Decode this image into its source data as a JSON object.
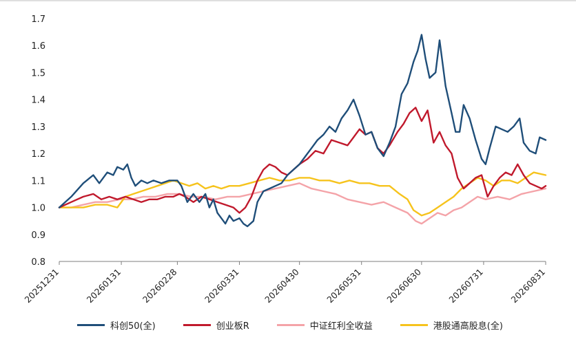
{
  "chart_data": {
    "type": "line",
    "title": "",
    "xlabel": "",
    "ylabel": "",
    "ylim": [
      0.8,
      1.7
    ],
    "y_ticks": [
      "0.8",
      "0.9",
      "1.0",
      "1.1",
      "1.2",
      "1.3",
      "1.4",
      "1.5",
      "1.6",
      "1.7"
    ],
    "x_ticks": [
      "20251231",
      "20260131",
      "20260228",
      "20260331",
      "20260430",
      "20260531",
      "20260630",
      "20260731",
      "20260831"
    ],
    "legend_position": "bottom",
    "grid": false,
    "colors": {
      "kc50": "#1f4e79",
      "cyb": "#c0192c",
      "zzhl": "#f4a3a8",
      "ggtgx": "#f6c31c",
      "axis": "#7f7f7f",
      "top_border": "#bfbfbf"
    },
    "series": [
      {
        "name": "科创50(全)",
        "color": "#1f4e79",
        "points": [
          [
            "20251231",
            1.0
          ],
          [
            "20260106",
            1.04
          ],
          [
            "20260112",
            1.09
          ],
          [
            "20260117",
            1.12
          ],
          [
            "20260120",
            1.09
          ],
          [
            "20260124",
            1.13
          ],
          [
            "20260127",
            1.12
          ],
          [
            "20260129",
            1.15
          ],
          [
            "20260201",
            1.14
          ],
          [
            "20260203",
            1.16
          ],
          [
            "20260205",
            1.11
          ],
          [
            "20260207",
            1.08
          ],
          [
            "20260210",
            1.1
          ],
          [
            "20260213",
            1.09
          ],
          [
            "20260216",
            1.1
          ],
          [
            "20260220",
            1.09
          ],
          [
            "20260224",
            1.1
          ],
          [
            "20260228",
            1.1
          ],
          [
            "20260302",
            1.08
          ],
          [
            "20260305",
            1.02
          ],
          [
            "20260308",
            1.05
          ],
          [
            "20260311",
            1.02
          ],
          [
            "20260314",
            1.05
          ],
          [
            "20260316",
            1.0
          ],
          [
            "20260318",
            1.03
          ],
          [
            "20260320",
            0.98
          ],
          [
            "20260322",
            0.96
          ],
          [
            "20260324",
            0.94
          ],
          [
            "20260326",
            0.97
          ],
          [
            "20260328",
            0.95
          ],
          [
            "20260331",
            0.96
          ],
          [
            "20260402",
            0.94
          ],
          [
            "20260404",
            0.93
          ],
          [
            "20260407",
            0.95
          ],
          [
            "20260409",
            1.02
          ],
          [
            "20260412",
            1.06
          ],
          [
            "20260415",
            1.07
          ],
          [
            "20260418",
            1.08
          ],
          [
            "20260421",
            1.09
          ],
          [
            "20260424",
            1.12
          ],
          [
            "20260427",
            1.14
          ],
          [
            "20260430",
            1.16
          ],
          [
            "20260503",
            1.19
          ],
          [
            "20260506",
            1.22
          ],
          [
            "20260509",
            1.25
          ],
          [
            "20260512",
            1.27
          ],
          [
            "20260515",
            1.3
          ],
          [
            "20260518",
            1.28
          ],
          [
            "20260521",
            1.33
          ],
          [
            "20260524",
            1.36
          ],
          [
            "20260527",
            1.4
          ],
          [
            "20260530",
            1.34
          ],
          [
            "20260602",
            1.27
          ],
          [
            "20260605",
            1.28
          ],
          [
            "20260608",
            1.22
          ],
          [
            "20260611",
            1.19
          ],
          [
            "20260614",
            1.24
          ],
          [
            "20260617",
            1.3
          ],
          [
            "20260620",
            1.42
          ],
          [
            "20260623",
            1.46
          ],
          [
            "20260626",
            1.54
          ],
          [
            "20260628",
            1.58
          ],
          [
            "20260630",
            1.64
          ],
          [
            "20260702",
            1.55
          ],
          [
            "20260704",
            1.48
          ],
          [
            "20260707",
            1.5
          ],
          [
            "20260709",
            1.62
          ],
          [
            "20260712",
            1.45
          ],
          [
            "20260715",
            1.35
          ],
          [
            "20260717",
            1.28
          ],
          [
            "20260719",
            1.28
          ],
          [
            "20260721",
            1.38
          ],
          [
            "20260724",
            1.33
          ],
          [
            "20260727",
            1.25
          ],
          [
            "20260730",
            1.18
          ],
          [
            "20260801",
            1.16
          ],
          [
            "20260803",
            1.22
          ],
          [
            "20260806",
            1.3
          ],
          [
            "20260809",
            1.29
          ],
          [
            "20260812",
            1.28
          ],
          [
            "20260815",
            1.3
          ],
          [
            "20260818",
            1.33
          ],
          [
            "20260820",
            1.24
          ],
          [
            "20260823",
            1.21
          ],
          [
            "20260826",
            1.2
          ],
          [
            "20260828",
            1.26
          ],
          [
            "20260831",
            1.25
          ]
        ]
      },
      {
        "name": "创业板R",
        "color": "#c0192c",
        "points": [
          [
            "20251231",
            1.0
          ],
          [
            "20260106",
            1.02
          ],
          [
            "20260112",
            1.04
          ],
          [
            "20260117",
            1.05
          ],
          [
            "20260121",
            1.03
          ],
          [
            "20260125",
            1.04
          ],
          [
            "20260129",
            1.03
          ],
          [
            "20260202",
            1.04
          ],
          [
            "20260206",
            1.03
          ],
          [
            "20260210",
            1.02
          ],
          [
            "20260214",
            1.03
          ],
          [
            "20260218",
            1.03
          ],
          [
            "20260222",
            1.04
          ],
          [
            "20260226",
            1.04
          ],
          [
            "20260301",
            1.05
          ],
          [
            "20260304",
            1.04
          ],
          [
            "20260308",
            1.02
          ],
          [
            "20260312",
            1.04
          ],
          [
            "20260316",
            1.03
          ],
          [
            "20260320",
            1.02
          ],
          [
            "20260324",
            1.01
          ],
          [
            "20260328",
            1.0
          ],
          [
            "20260331",
            0.98
          ],
          [
            "20260403",
            1.0
          ],
          [
            "20260406",
            1.04
          ],
          [
            "20260409",
            1.1
          ],
          [
            "20260412",
            1.14
          ],
          [
            "20260415",
            1.16
          ],
          [
            "20260418",
            1.15
          ],
          [
            "20260421",
            1.13
          ],
          [
            "20260424",
            1.12
          ],
          [
            "20260427",
            1.14
          ],
          [
            "20260430",
            1.16
          ],
          [
            "20260504",
            1.18
          ],
          [
            "20260508",
            1.21
          ],
          [
            "20260512",
            1.2
          ],
          [
            "20260516",
            1.25
          ],
          [
            "20260520",
            1.24
          ],
          [
            "20260524",
            1.23
          ],
          [
            "20260527",
            1.26
          ],
          [
            "20260530",
            1.29
          ],
          [
            "20260602",
            1.27
          ],
          [
            "20260605",
            1.28
          ],
          [
            "20260608",
            1.22
          ],
          [
            "20260611",
            1.2
          ],
          [
            "20260614",
            1.23
          ],
          [
            "20260618",
            1.28
          ],
          [
            "20260621",
            1.31
          ],
          [
            "20260624",
            1.35
          ],
          [
            "20260627",
            1.37
          ],
          [
            "20260630",
            1.32
          ],
          [
            "20260703",
            1.36
          ],
          [
            "20260706",
            1.24
          ],
          [
            "20260709",
            1.28
          ],
          [
            "20260712",
            1.23
          ],
          [
            "20260715",
            1.2
          ],
          [
            "20260718",
            1.11
          ],
          [
            "20260721",
            1.07
          ],
          [
            "20260724",
            1.09
          ],
          [
            "20260727",
            1.11
          ],
          [
            "20260730",
            1.12
          ],
          [
            "20260802",
            1.04
          ],
          [
            "20260805",
            1.08
          ],
          [
            "20260808",
            1.11
          ],
          [
            "20260811",
            1.13
          ],
          [
            "20260814",
            1.12
          ],
          [
            "20260817",
            1.16
          ],
          [
            "20260820",
            1.12
          ],
          [
            "20260823",
            1.09
          ],
          [
            "20260826",
            1.08
          ],
          [
            "20260829",
            1.07
          ],
          [
            "20260831",
            1.08
          ]
        ]
      },
      {
        "name": "中证红利全收益",
        "color": "#f4a3a8",
        "points": [
          [
            "20251231",
            1.0
          ],
          [
            "20260106",
            1.0
          ],
          [
            "20260112",
            1.01
          ],
          [
            "20260118",
            1.02
          ],
          [
            "20260124",
            1.02
          ],
          [
            "20260130",
            1.03
          ],
          [
            "20260205",
            1.03
          ],
          [
            "20260211",
            1.04
          ],
          [
            "20260217",
            1.04
          ],
          [
            "20260223",
            1.05
          ],
          [
            "20260301",
            1.05
          ],
          [
            "20260307",
            1.04
          ],
          [
            "20260313",
            1.04
          ],
          [
            "20260319",
            1.03
          ],
          [
            "20260325",
            1.04
          ],
          [
            "20260331",
            1.04
          ],
          [
            "20260406",
            1.05
          ],
          [
            "20260412",
            1.06
          ],
          [
            "20260418",
            1.07
          ],
          [
            "20260424",
            1.08
          ],
          [
            "20260430",
            1.09
          ],
          [
            "20260506",
            1.07
          ],
          [
            "20260512",
            1.06
          ],
          [
            "20260518",
            1.05
          ],
          [
            "20260524",
            1.03
          ],
          [
            "20260530",
            1.02
          ],
          [
            "20260605",
            1.01
          ],
          [
            "20260611",
            1.02
          ],
          [
            "20260617",
            1.0
          ],
          [
            "20260623",
            0.98
          ],
          [
            "20260627",
            0.95
          ],
          [
            "20260630",
            0.94
          ],
          [
            "20260704",
            0.96
          ],
          [
            "20260708",
            0.98
          ],
          [
            "20260712",
            0.97
          ],
          [
            "20260716",
            0.99
          ],
          [
            "20260720",
            1.0
          ],
          [
            "20260724",
            1.02
          ],
          [
            "20260728",
            1.04
          ],
          [
            "20260801",
            1.03
          ],
          [
            "20260807",
            1.04
          ],
          [
            "20260813",
            1.03
          ],
          [
            "20260819",
            1.05
          ],
          [
            "20260825",
            1.06
          ],
          [
            "20260831",
            1.07
          ]
        ]
      },
      {
        "name": "港股通高股息(全)",
        "color": "#f6c31c",
        "points": [
          [
            "20251231",
            1.0
          ],
          [
            "20260106",
            1.0
          ],
          [
            "20260112",
            1.0
          ],
          [
            "20260118",
            1.01
          ],
          [
            "20260124",
            1.01
          ],
          [
            "20260129",
            1.0
          ],
          [
            "20260202",
            1.04
          ],
          [
            "20260206",
            1.05
          ],
          [
            "20260210",
            1.06
          ],
          [
            "20260214",
            1.07
          ],
          [
            "20260218",
            1.08
          ],
          [
            "20260222",
            1.09
          ],
          [
            "20260226",
            1.1
          ],
          [
            "20260302",
            1.09
          ],
          [
            "20260306",
            1.08
          ],
          [
            "20260310",
            1.09
          ],
          [
            "20260314",
            1.07
          ],
          [
            "20260318",
            1.08
          ],
          [
            "20260322",
            1.07
          ],
          [
            "20260326",
            1.08
          ],
          [
            "20260331",
            1.08
          ],
          [
            "20260405",
            1.09
          ],
          [
            "20260410",
            1.1
          ],
          [
            "20260415",
            1.11
          ],
          [
            "20260420",
            1.1
          ],
          [
            "20260425",
            1.1
          ],
          [
            "20260430",
            1.11
          ],
          [
            "20260505",
            1.11
          ],
          [
            "20260510",
            1.1
          ],
          [
            "20260515",
            1.1
          ],
          [
            "20260520",
            1.09
          ],
          [
            "20260525",
            1.1
          ],
          [
            "20260530",
            1.09
          ],
          [
            "20260604",
            1.09
          ],
          [
            "20260609",
            1.08
          ],
          [
            "20260614",
            1.08
          ],
          [
            "20260619",
            1.05
          ],
          [
            "20260623",
            1.03
          ],
          [
            "20260626",
            0.99
          ],
          [
            "20260630",
            0.97
          ],
          [
            "20260704",
            0.98
          ],
          [
            "20260708",
            1.0
          ],
          [
            "20260712",
            1.02
          ],
          [
            "20260716",
            1.04
          ],
          [
            "20260720",
            1.07
          ],
          [
            "20260724",
            1.09
          ],
          [
            "20260728",
            1.11
          ],
          [
            "20260801",
            1.1
          ],
          [
            "20260805",
            1.08
          ],
          [
            "20260809",
            1.1
          ],
          [
            "20260813",
            1.1
          ],
          [
            "20260817",
            1.09
          ],
          [
            "20260821",
            1.11
          ],
          [
            "20260825",
            1.13
          ],
          [
            "20260831",
            1.12
          ]
        ]
      }
    ]
  }
}
